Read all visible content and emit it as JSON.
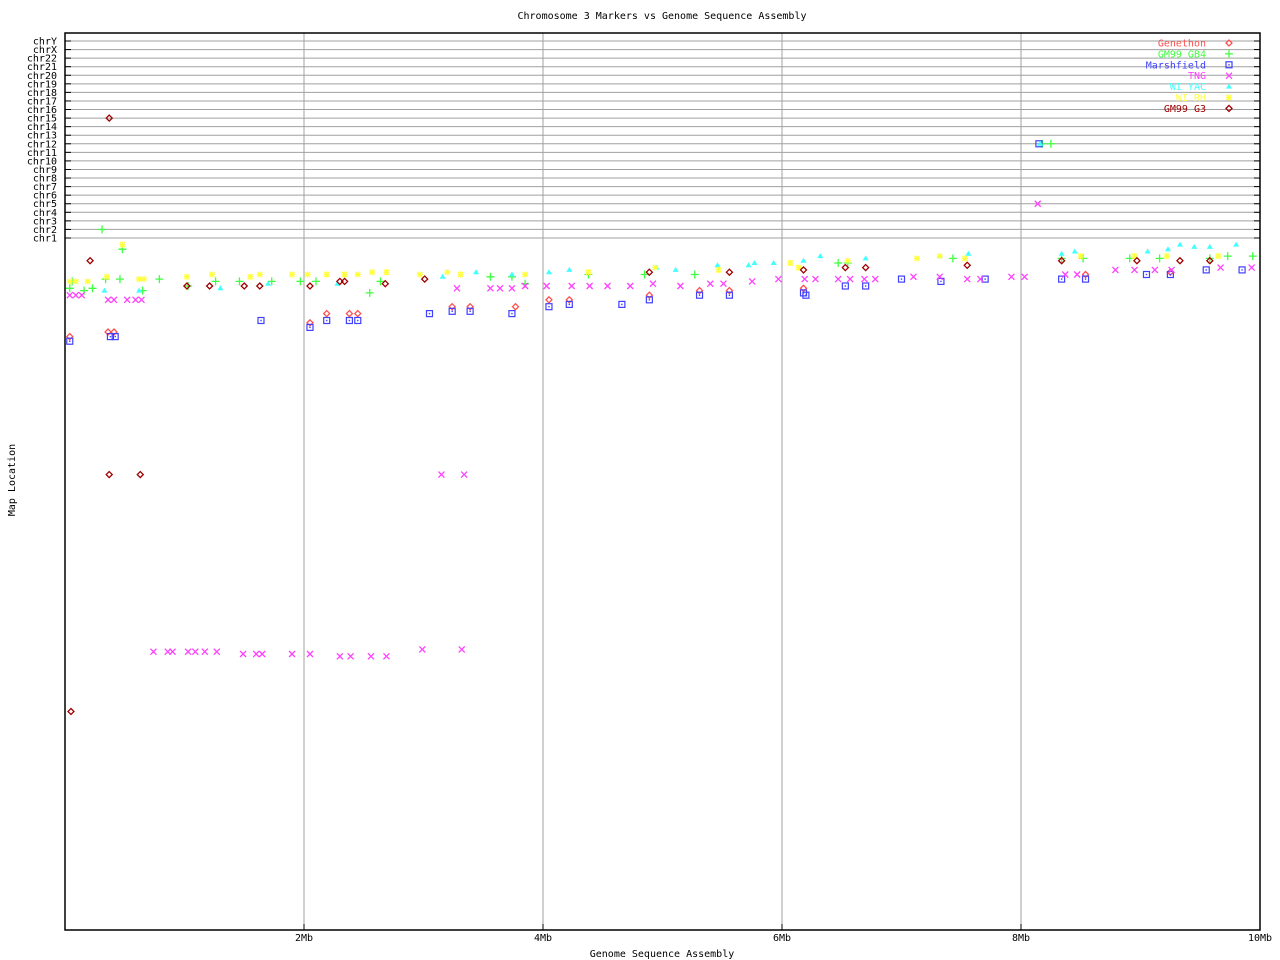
{
  "chart_data": {
    "type": "scatter",
    "title": "Chromosome 3 Markers vs Genome Sequence Assembly",
    "xlabel": "Genome Sequence Assembly",
    "ylabel": "Map Location",
    "xlim": [
      0,
      10
    ],
    "x_ticks": [
      {
        "value": 2,
        "label": "2Mb"
      },
      {
        "value": 4,
        "label": "4Mb"
      },
      {
        "value": 6,
        "label": "6Mb"
      },
      {
        "value": 8,
        "label": "8Mb"
      },
      {
        "value": 10,
        "label": "10Mb"
      }
    ],
    "y_categories": [
      "chrY",
      "chrX",
      "chr22",
      "chr21",
      "chr20",
      "chr19",
      "chr18",
      "chr17",
      "chr16",
      "chr15",
      "chr14",
      "chr13",
      "chr12",
      "chr11",
      "chr10",
      "chr9",
      "chr8",
      "chr7",
      "chr6",
      "chr5",
      "chr4",
      "chr3",
      "chr2",
      "chr1"
    ],
    "map_ylim": [
      0,
      300
    ],
    "grid": true,
    "legend_position": "top-right",
    "series": [
      {
        "name": "Genethon",
        "color": "#ff5050",
        "marker": "diamond",
        "points": [
          [
            0.04,
            42
          ],
          [
            0.36,
            40
          ],
          [
            0.41,
            40
          ],
          [
            2.05,
            36
          ],
          [
            2.19,
            32
          ],
          [
            2.38,
            32
          ],
          [
            2.45,
            32
          ],
          [
            3.24,
            29
          ],
          [
            3.39,
            29
          ],
          [
            3.77,
            29
          ],
          [
            4.05,
            26
          ],
          [
            4.22,
            26
          ],
          [
            4.89,
            24
          ],
          [
            5.31,
            22
          ],
          [
            5.56,
            22
          ],
          [
            6.18,
            21
          ],
          [
            8.54,
            15
          ],
          [
            9.25,
            14
          ]
        ]
      },
      {
        "name": "GM99 GB4",
        "color": "#40ff40",
        "marker": "plus",
        "points": [
          [
            0.04,
            21
          ],
          [
            0.06,
            18
          ],
          [
            0.16,
            22
          ],
          [
            0.23,
            21
          ],
          [
            0.31,
            "chr2"
          ],
          [
            0.34,
            17
          ],
          [
            0.48,
            4
          ],
          [
            0.46,
            17
          ],
          [
            0.65,
            22
          ],
          [
            0.79,
            17
          ],
          [
            1.03,
            20
          ],
          [
            1.26,
            18
          ],
          [
            1.46,
            18
          ],
          [
            1.73,
            18
          ],
          [
            1.97,
            18
          ],
          [
            2.1,
            18
          ],
          [
            2.55,
            23
          ],
          [
            2.64,
            18
          ],
          [
            3.56,
            16
          ],
          [
            3.74,
            16
          ],
          [
            3.85,
            19
          ],
          [
            4.38,
            15
          ],
          [
            4.85,
            15
          ],
          [
            5.27,
            15
          ],
          [
            6.47,
            10
          ],
          [
            6.55,
            10
          ],
          [
            7.43,
            8
          ],
          [
            8.34,
            8
          ],
          [
            8.52,
            8
          ],
          [
            8.91,
            8
          ],
          [
            9.16,
            8
          ],
          [
            9.58,
            8
          ],
          [
            9.73,
            7
          ],
          [
            9.94,
            7
          ],
          [
            8.18,
            "chr12"
          ],
          [
            8.25,
            "chr12"
          ]
        ]
      },
      {
        "name": "Marshfield",
        "color": "#4040ff",
        "marker": "square",
        "points": [
          [
            0.04,
            44
          ],
          [
            0.38,
            42
          ],
          [
            0.42,
            42
          ],
          [
            1.64,
            35
          ],
          [
            2.05,
            38
          ],
          [
            2.19,
            35
          ],
          [
            2.38,
            35
          ],
          [
            2.45,
            35
          ],
          [
            3.05,
            32
          ],
          [
            3.24,
            31
          ],
          [
            3.39,
            31
          ],
          [
            3.74,
            32
          ],
          [
            4.05,
            29
          ],
          [
            4.22,
            28
          ],
          [
            4.66,
            28
          ],
          [
            4.89,
            26
          ],
          [
            5.31,
            24
          ],
          [
            5.56,
            24
          ],
          [
            6.18,
            23
          ],
          [
            6.2,
            24
          ],
          [
            6.53,
            20
          ],
          [
            6.7,
            20
          ],
          [
            7.0,
            17
          ],
          [
            7.33,
            18
          ],
          [
            7.7,
            17
          ],
          [
            8.34,
            17
          ],
          [
            8.54,
            17
          ],
          [
            9.05,
            15
          ],
          [
            9.25,
            15
          ],
          [
            9.55,
            13
          ],
          [
            9.85,
            13
          ],
          [
            8.15,
            "chr12"
          ]
        ]
      },
      {
        "name": "TNG",
        "color": "#ff40ff",
        "marker": "cross",
        "points": [
          [
            0.04,
            24
          ],
          [
            0.09,
            24
          ],
          [
            0.14,
            24
          ],
          [
            0.36,
            26
          ],
          [
            0.41,
            26
          ],
          [
            0.52,
            26
          ],
          [
            0.59,
            26
          ],
          [
            0.64,
            26
          ],
          [
            0.74,
            179
          ],
          [
            0.86,
            179
          ],
          [
            0.9,
            179
          ],
          [
            1.03,
            179
          ],
          [
            1.09,
            179
          ],
          [
            1.17,
            179
          ],
          [
            1.27,
            179
          ],
          [
            1.49,
            180
          ],
          [
            1.6,
            180
          ],
          [
            1.65,
            180
          ],
          [
            1.9,
            180
          ],
          [
            2.05,
            180
          ],
          [
            2.3,
            181
          ],
          [
            2.39,
            181
          ],
          [
            2.56,
            181
          ],
          [
            2.69,
            181
          ],
          [
            2.99,
            178
          ],
          [
            3.32,
            178
          ],
          [
            3.15,
            102
          ],
          [
            3.34,
            102
          ],
          [
            3.28,
            21
          ],
          [
            3.56,
            21
          ],
          [
            3.64,
            21
          ],
          [
            3.74,
            21
          ],
          [
            3.85,
            20
          ],
          [
            4.03,
            20
          ],
          [
            4.24,
            20
          ],
          [
            4.39,
            20
          ],
          [
            4.54,
            20
          ],
          [
            4.73,
            20
          ],
          [
            4.92,
            19
          ],
          [
            5.15,
            20
          ],
          [
            5.4,
            19
          ],
          [
            5.51,
            19
          ],
          [
            5.75,
            18
          ],
          [
            5.97,
            17
          ],
          [
            6.19,
            17
          ],
          [
            6.28,
            17
          ],
          [
            6.47,
            17
          ],
          [
            6.57,
            17
          ],
          [
            6.69,
            17
          ],
          [
            6.78,
            17
          ],
          [
            7.1,
            16
          ],
          [
            7.32,
            16
          ],
          [
            7.55,
            17
          ],
          [
            7.66,
            17
          ],
          [
            7.92,
            16
          ],
          [
            8.03,
            16
          ],
          [
            8.14,
            "chr5"
          ],
          [
            8.37,
            15
          ],
          [
            8.47,
            15
          ],
          [
            8.79,
            13
          ],
          [
            8.95,
            13
          ],
          [
            9.12,
            13
          ],
          [
            9.26,
            13
          ],
          [
            9.67,
            12
          ],
          [
            9.93,
            12
          ]
        ]
      },
      {
        "name": "WI YAC",
        "color": "#40ffff",
        "marker": "triangle",
        "points": [
          [
            0.33,
            22
          ],
          [
            0.62,
            22
          ],
          [
            1.3,
            21
          ],
          [
            1.7,
            19
          ],
          [
            2.28,
            19
          ],
          [
            3.16,
            16
          ],
          [
            3.44,
            14
          ],
          [
            3.74,
            15
          ],
          [
            4.05,
            14
          ],
          [
            4.22,
            13
          ],
          [
            4.95,
            12
          ],
          [
            5.11,
            13
          ],
          [
            5.46,
            11
          ],
          [
            5.72,
            11
          ],
          [
            5.77,
            10
          ],
          [
            5.93,
            10
          ],
          [
            6.18,
            9
          ],
          [
            6.32,
            7
          ],
          [
            6.7,
            8
          ],
          [
            7.32,
            7
          ],
          [
            7.56,
            6
          ],
          [
            8.34,
            6
          ],
          [
            8.45,
            5
          ],
          [
            9.06,
            5
          ],
          [
            9.23,
            4
          ],
          [
            9.33,
            2
          ],
          [
            9.45,
            3
          ],
          [
            9.58,
            3
          ],
          [
            9.8,
            2
          ],
          [
            8.16,
            "chr12"
          ]
        ]
      },
      {
        "name": "WI RH",
        "color": "#ffff40",
        "marker": "star",
        "points": [
          [
            0.04,
            18
          ],
          [
            0.09,
            18
          ],
          [
            0.19,
            18
          ],
          [
            0.35,
            16
          ],
          [
            0.48,
            2
          ],
          [
            0.62,
            17
          ],
          [
            0.66,
            17
          ],
          [
            1.02,
            16
          ],
          [
            1.23,
            15
          ],
          [
            1.55,
            16
          ],
          [
            1.63,
            15
          ],
          [
            1.9,
            15
          ],
          [
            2.03,
            15
          ],
          [
            2.19,
            15
          ],
          [
            2.34,
            15
          ],
          [
            2.45,
            15
          ],
          [
            2.57,
            14
          ],
          [
            2.69,
            14
          ],
          [
            2.97,
            15
          ],
          [
            3.2,
            14
          ],
          [
            3.31,
            15
          ],
          [
            3.85,
            15
          ],
          [
            4.38,
            14
          ],
          [
            4.94,
            12
          ],
          [
            5.47,
            13
          ],
          [
            6.07,
            10
          ],
          [
            6.14,
            12
          ],
          [
            6.55,
            9
          ],
          [
            7.13,
            8
          ],
          [
            7.32,
            7
          ],
          [
            7.53,
            8
          ],
          [
            8.5,
            7
          ],
          [
            8.95,
            7
          ],
          [
            9.22,
            7
          ],
          [
            9.65,
            7
          ]
        ]
      },
      {
        "name": "GM99 G3",
        "color": "#a00000",
        "marker": "diamond",
        "points": [
          [
            0.37,
            "chr15"
          ],
          [
            0.21,
            9
          ],
          [
            0.37,
            102
          ],
          [
            0.63,
            102
          ],
          [
            0.05,
            205
          ],
          [
            1.02,
            20
          ],
          [
            1.21,
            20
          ],
          [
            1.5,
            20
          ],
          [
            1.63,
            20
          ],
          [
            2.05,
            20
          ],
          [
            2.3,
            18
          ],
          [
            2.34,
            18
          ],
          [
            2.68,
            19
          ],
          [
            3.01,
            17
          ],
          [
            4.89,
            14
          ],
          [
            5.56,
            14
          ],
          [
            6.18,
            13
          ],
          [
            6.53,
            12
          ],
          [
            6.7,
            12
          ],
          [
            7.55,
            11
          ],
          [
            8.34,
            9
          ],
          [
            8.97,
            9
          ],
          [
            9.33,
            9
          ],
          [
            9.58,
            9
          ]
        ]
      }
    ]
  }
}
